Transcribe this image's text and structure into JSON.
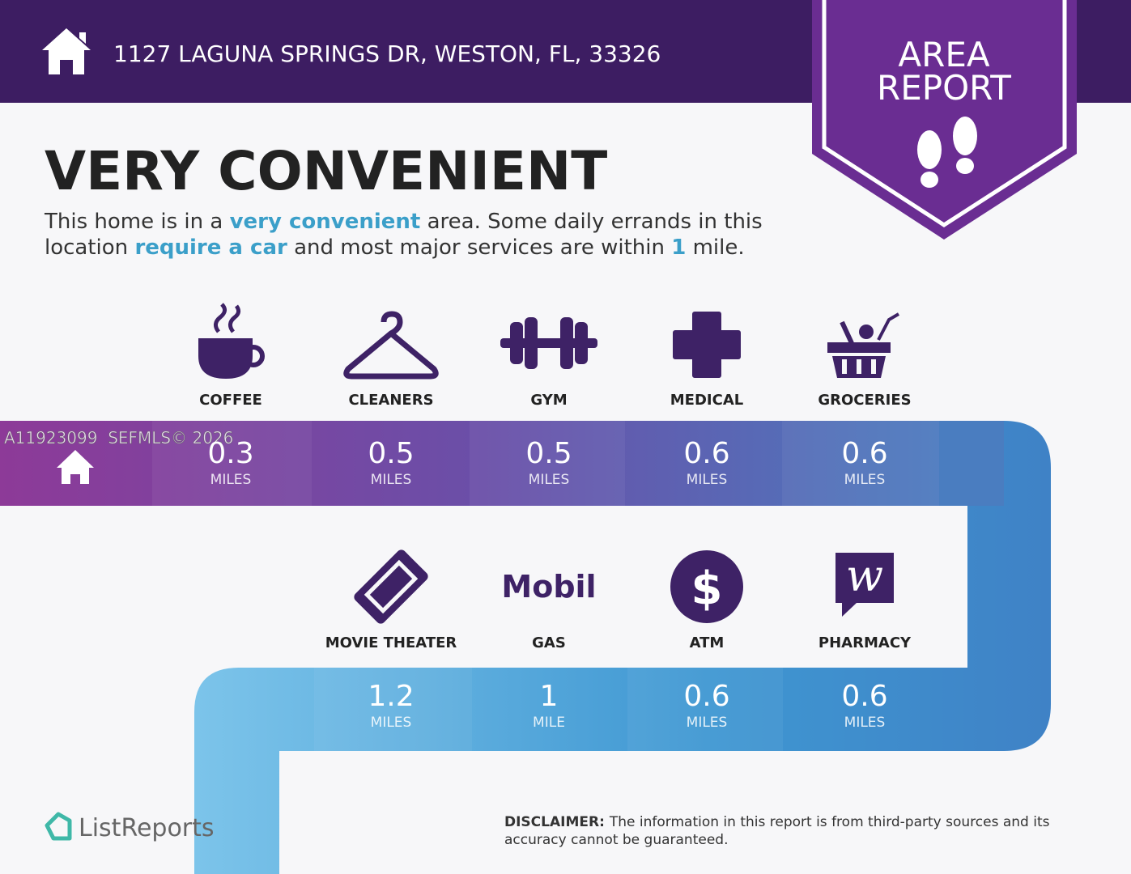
{
  "header": {
    "address": "1127 LAGUNA SPRINGS DR, WESTON, FL, 33326"
  },
  "badge": {
    "line1": "AREA",
    "line2": "REPORT"
  },
  "title": "VERY CONVENIENT",
  "description": {
    "lines": [
      [
        "This home is in a ",
        "very convenient",
        " area. Some daily errands in this"
      ],
      [
        "location ",
        "require a car",
        " and most major services are within ",
        "1",
        " mile."
      ]
    ]
  },
  "watermark": "A11923099  SEFMLS© 2026",
  "icon_texts": {
    "gas_logo": "Mobil",
    "atm_symbol": "$",
    "pharmacy_logo": "w"
  },
  "rows": [
    {
      "items": [
        {
          "label": "COFFEE",
          "distance": 0.3,
          "unit": "MILES"
        },
        {
          "label": "CLEANERS",
          "distance": 0.5,
          "unit": "MILES"
        },
        {
          "label": "GYM",
          "distance": 0.5,
          "unit": "MILES"
        },
        {
          "label": "MEDICAL",
          "distance": 0.6,
          "unit": "MILES"
        },
        {
          "label": "GROCERIES",
          "distance": 0.6,
          "unit": "MILES"
        }
      ]
    },
    {
      "items": [
        {
          "label": "MOVIE THEATER",
          "distance": 1.2,
          "unit": "MILES"
        },
        {
          "label": "GAS",
          "distance": 1,
          "unit": "MILE"
        },
        {
          "label": "ATM",
          "distance": 0.6,
          "unit": "MILES"
        },
        {
          "label": "PHARMACY",
          "distance": 0.6,
          "unit": "MILES"
        }
      ]
    }
  ],
  "footer": {
    "brand": "ListReports",
    "disclaimer_label": "DISCLAIMER:",
    "disclaimer_lines": [
      "The information in this report is from third-party sources and its",
      "accuracy cannot be guaranteed."
    ]
  }
}
